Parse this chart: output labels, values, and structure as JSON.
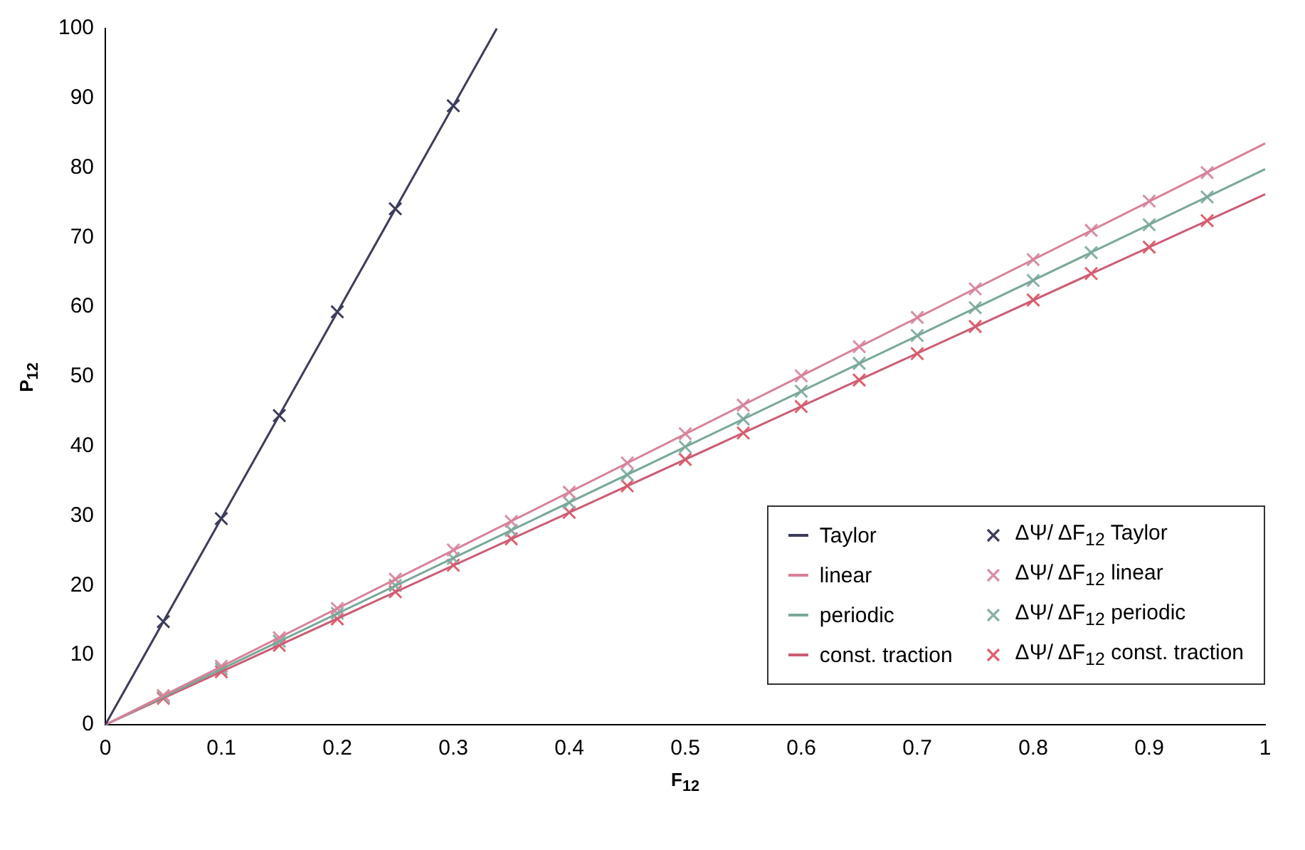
{
  "chart_data": {
    "type": "line",
    "xlabel": "F$_{12}$",
    "ylabel": "P$_{12}$",
    "xlim": [
      0,
      1
    ],
    "xticks": [
      0,
      0.1,
      0.2,
      0.3,
      0.4,
      0.5,
      0.6,
      0.7,
      0.8,
      0.9,
      1
    ],
    "ylim": [
      0,
      100
    ],
    "yticks": [
      0,
      10,
      20,
      30,
      40,
      50,
      60,
      70,
      80,
      90,
      100
    ],
    "grid": false,
    "legend": "bottom right",
    "line_style": "solid",
    "series": [
      {
        "name": "Taylor",
        "type": "line",
        "marker": "none",
        "color": "#3c3c5c",
        "x": [
          0,
          0.3375
        ],
        "values": [
          0,
          100
        ]
      },
      {
        "name": "linear",
        "type": "line",
        "marker": "none",
        "color": "#d88098",
        "x": [
          0,
          1
        ],
        "values": [
          0,
          83.5
        ]
      },
      {
        "name": "periodic",
        "type": "line",
        "marker": "none",
        "color": "#78a898",
        "x": [
          0,
          1
        ],
        "values": [
          0,
          79.8
        ]
      },
      {
        "name": "const. traction",
        "type": "line",
        "marker": "none",
        "color": "#cc5c74",
        "x": [
          0,
          1
        ],
        "values": [
          0,
          76.2
        ]
      },
      {
        "name": "ΔΨ/ ΔF$_{12}$ Taylor",
        "type": "scatter",
        "marker": "cross",
        "color": "#3c3c5c",
        "x": [
          0.05,
          0.1,
          0.15,
          0.2,
          0.25,
          0.3
        ],
        "values": [
          14.8,
          29.6,
          44.4,
          59.3,
          74.1,
          88.9
        ]
      },
      {
        "name": "ΔΨ/ ΔF$_{12}$ linear",
        "type": "scatter",
        "marker": "cross",
        "color": "#d890a4",
        "x": [
          0.05,
          0.1,
          0.15,
          0.2,
          0.25,
          0.3,
          0.35,
          0.4,
          0.45,
          0.5,
          0.55,
          0.6,
          0.65,
          0.7,
          0.75,
          0.8,
          0.85,
          0.9,
          0.95
        ],
        "values": [
          4.2,
          8.4,
          12.5,
          16.7,
          20.9,
          25.1,
          29.2,
          33.4,
          37.6,
          41.8,
          45.9,
          50.1,
          54.3,
          58.5,
          62.6,
          66.8,
          71.0,
          75.2,
          79.3
        ]
      },
      {
        "name": "ΔΨ/ ΔF$_{12}$ periodic",
        "type": "scatter",
        "marker": "cross",
        "color": "#88b0a8",
        "x": [
          0.05,
          0.1,
          0.15,
          0.2,
          0.25,
          0.3,
          0.35,
          0.4,
          0.45,
          0.5,
          0.55,
          0.6,
          0.65,
          0.7,
          0.75,
          0.8,
          0.85,
          0.9,
          0.95
        ],
        "values": [
          4.0,
          8.0,
          12.0,
          16.0,
          20.0,
          23.9,
          27.9,
          31.9,
          35.9,
          39.9,
          43.9,
          47.9,
          51.9,
          55.9,
          59.9,
          63.8,
          67.8,
          71.8,
          75.8
        ]
      },
      {
        "name": "ΔΨ/ ΔF$_{12}$ const. traction",
        "type": "scatter",
        "marker": "cross",
        "color": "#e0606c",
        "x": [
          0.05,
          0.1,
          0.15,
          0.2,
          0.25,
          0.3,
          0.35,
          0.4,
          0.45,
          0.5,
          0.55,
          0.6,
          0.65,
          0.7,
          0.75,
          0.8,
          0.85,
          0.9,
          0.95
        ],
        "values": [
          3.8,
          7.6,
          11.4,
          15.2,
          19.1,
          22.9,
          26.7,
          30.5,
          34.3,
          38.1,
          41.9,
          45.7,
          49.5,
          53.3,
          57.2,
          61.0,
          64.8,
          68.6,
          72.4
        ]
      }
    ]
  }
}
